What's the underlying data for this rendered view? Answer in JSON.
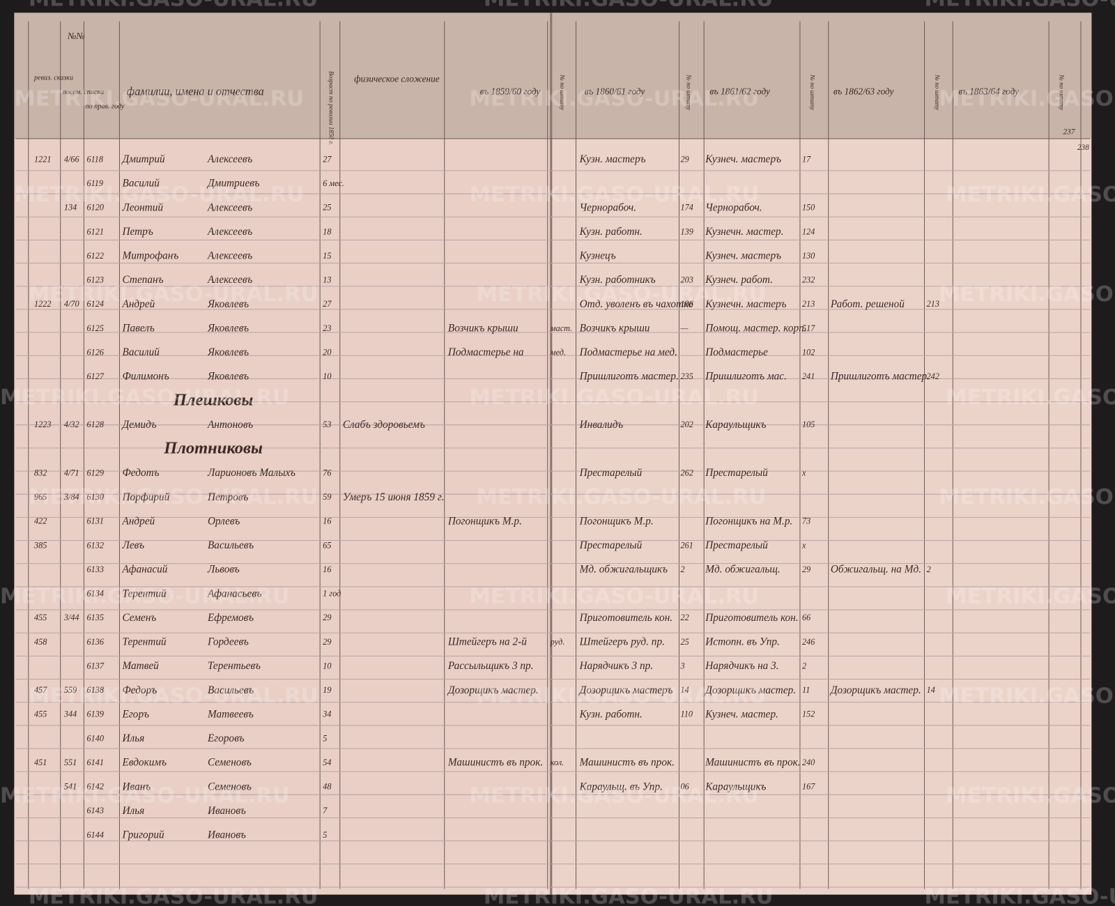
{
  "header": {
    "numbers": "№№",
    "sub": [
      "ревиз. сказки",
      "посем. списка",
      "по прав. году"
    ],
    "name": "фамилии, имена и отчества",
    "age": "Возраст по ревизии 1850 г.",
    "physique": "физическое сложение",
    "years": [
      "въ 1859/60 году",
      "въ 1860/61 году",
      "въ 1861/62 году",
      "въ 1862/63 году",
      "въ 1863/64 году"
    ],
    "staff_no": "№ по штату"
  },
  "page_numbers": [
    "237",
    "238"
  ],
  "watermark": "METRIKI.GASO-URAL.RU",
  "entries": [
    {
      "rev": "1221",
      "pos": "4/66",
      "prav": "6118",
      "first": "Дмитрий",
      "patr": "Алексеевъ",
      "age": "27",
      "y1860": "Кузн. мастеръ",
      "n1860": "29",
      "y1861": "Кузнеч. мастеръ",
      "n1861": "17"
    },
    {
      "prav": "6119",
      "first": "Василий",
      "patr": "Дмитриевъ",
      "age": "6 мес."
    },
    {
      "pos": "134",
      "prav": "6120",
      "first": "Леонтий",
      "patr": "Алексеевъ",
      "age": "25",
      "y1860": "Чернорабоч.",
      "n1860": "174",
      "y1861": "Чернорабоч.",
      "n1861": "150"
    },
    {
      "prav": "6121",
      "first": "Петръ",
      "patr": "Алексеевъ",
      "age": "18",
      "y1860": "Кузн. работн.",
      "n1860": "139",
      "y1861": "Кузнечн. мастер.",
      "n1861": "124"
    },
    {
      "prav": "6122",
      "first": "Митрофанъ",
      "patr": "Алексеевъ",
      "age": "15",
      "y1860": "Кузнецъ",
      "y1861": "Кузнеч. мастеръ",
      "n1861": "130"
    },
    {
      "prav": "6123",
      "first": "Степанъ",
      "patr": "Алексеевъ",
      "age": "13",
      "y1860": "Кузн. работникъ",
      "n1860": "203",
      "y1861": "Кузнеч. работ.",
      "n1861": "232"
    },
    {
      "rev": "1222",
      "pos": "4/70",
      "prav": "6124",
      "first": "Андрей",
      "patr": "Яковлевъ",
      "age": "27",
      "y1860": "Отд. уволенъ въ чахотке",
      "n1860": "196",
      "y1861": "Кузнечн. мастеръ",
      "n1861": "213",
      "y1862": "Работ. решеной",
      "n1862": "213"
    },
    {
      "prav": "6125",
      "first": "Павелъ",
      "patr": "Яковлевъ",
      "age": "23",
      "y1859": "Возчикъ крыши",
      "n1859": "маст.",
      "y1860": "Возчикъ крыши",
      "n1860": "—",
      "y1861": "Помощ. мастер. корп.",
      "n1861": "517"
    },
    {
      "prav": "6126",
      "first": "Василий",
      "patr": "Яковлевъ",
      "age": "20",
      "y1859": "Подмастерье на",
      "n1859": "мед.",
      "y1860": "Подмастерье на мед.",
      "y1861": "Подмастерье",
      "n1861": "102"
    },
    {
      "prav": "6127",
      "first": "Филимонъ",
      "patr": "Яковлевъ",
      "age": "10",
      "y1860": "Пришлиготъ мастер.",
      "n1860": "235",
      "y1861": "Пришлиготъ мас.",
      "n1861": "241",
      "y1862": "Пришлиготъ мастер.",
      "n1862": "242"
    },
    {
      "section": "Плешковы"
    },
    {
      "rev": "1223",
      "pos": "4/32",
      "prav": "6128",
      "first": "Демидъ",
      "patr": "Антоновъ",
      "age": "53",
      "phys": "Слабъ здоровьемъ",
      "y1860": "Инвалидъ",
      "n1860": "202",
      "y1861": "Караульщикъ",
      "n1861": "105"
    },
    {
      "section": "Плотниковы"
    },
    {
      "rev": "832",
      "pos": "4/71",
      "prav": "6129",
      "first": "Федотъ",
      "patr": "Ларионовъ Малыхъ",
      "age": "76",
      "y1860": "Престарелый",
      "n1860": "262",
      "y1861": "Престарелый",
      "n1861": "х"
    },
    {
      "rev": "965",
      "pos": "3/84",
      "prav": "6130",
      "first": "Порфирий",
      "patr": "Петровъ",
      "age": "59",
      "phys": "Умеръ 15 июня 1859 г."
    },
    {
      "rev": "422",
      "prav": "6131",
      "first": "Андрей",
      "patr": "Орлевъ",
      "age": "16",
      "y1859": "Погонщикъ М.р.",
      "y1860": "Погонщикъ М.р.",
      "y1861": "Погонщикъ на М.р.",
      "n1861": "73"
    },
    {
      "rev": "385",
      "prav": "6132",
      "first": "Левъ",
      "patr": "Васильевъ",
      "age": "65",
      "y1860": "Престарелый",
      "n1860": "261",
      "y1861": "Престарелый",
      "n1861": "х"
    },
    {
      "prav": "6133",
      "first": "Афанасий",
      "patr": "Львовъ",
      "age": "16",
      "y1860": "Мд. обжигальщикъ",
      "n1860": "2",
      "y1861": "Мд. обжигальщ.",
      "n1861": "29",
      "y1862": "Обжигальщ. на Мд.",
      "n1862": "2"
    },
    {
      "prav": "6134",
      "first": "Терентий",
      "patr": "Афанасьевъ",
      "age": "1 год"
    },
    {
      "rev": "455",
      "pos": "3/44",
      "prav": "6135",
      "first": "Семенъ",
      "patr": "Ефремовъ",
      "age": "29",
      "y1860": "Приготовитель кон.",
      "n1860": "22",
      "y1861": "Приготовитель кон.",
      "n1861": "66"
    },
    {
      "rev": "458",
      "prav": "6136",
      "first": "Терентий",
      "patr": "Гордеевъ",
      "age": "29",
      "y1859": "Штейгеръ на 2-й",
      "n1859": "руд.",
      "y1860": "Штейгеръ руд. пр.",
      "n1860": "25",
      "y1861": "Истопн. въ Упр.",
      "n1861": "246"
    },
    {
      "prav": "6137",
      "first": "Матвей",
      "patr": "Терентьевъ",
      "age": "10",
      "y1859": "Рассыльщикъ 3 пр.",
      "y1860": "Нарядчикъ 3 пр.",
      "n1860": "3",
      "y1861": "Нарядчикъ на 3.",
      "n1861": "2"
    },
    {
      "rev": "457",
      "pos": "559",
      "prav": "6138",
      "first": "Федоръ",
      "patr": "Васильевъ",
      "age": "19",
      "y1859": "Дозорщикъ мастер.",
      "y1860": "Дозорщикъ мастеръ",
      "n1860": "14",
      "y1861": "Дозорщикъ мастер.",
      "n1861": "11",
      "y1862": "Дозорщикъ мастер.",
      "n1862": "14"
    },
    {
      "rev": "455",
      "pos": "344",
      "prav": "6139",
      "first": "Егоръ",
      "patr": "Матвеевъ",
      "age": "34",
      "y1860": "Кузн. работн.",
      "n1860": "110",
      "y1861": "Кузнеч. мастер.",
      "n1861": "152"
    },
    {
      "prav": "6140",
      "first": "Илья",
      "patr": "Егоровъ",
      "age": "5"
    },
    {
      "rev": "451",
      "pos": "551",
      "prav": "6141",
      "first": "Евдокимъ",
      "patr": "Семеновъ",
      "age": "54",
      "y1859": "Машинистъ въ прок.",
      "n1859": "кол.",
      "y1860": "Машинистъ въ прок.",
      "y1861": "Машинистъ въ прок.",
      "n1861": "240"
    },
    {
      "pos": "541",
      "prav": "6142",
      "first": "Иванъ",
      "patr": "Семеновъ",
      "age": "48",
      "y1860": "Караульщ. въ Упр.",
      "n1860": "06",
      "y1861": "Караульщикъ",
      "n1861": "167"
    },
    {
      "prav": "6143",
      "first": "Илья",
      "patr": "Ивановъ",
      "age": "7"
    },
    {
      "prav": "6144",
      "first": "Григорий",
      "patr": "Ивановъ",
      "age": "5"
    }
  ]
}
